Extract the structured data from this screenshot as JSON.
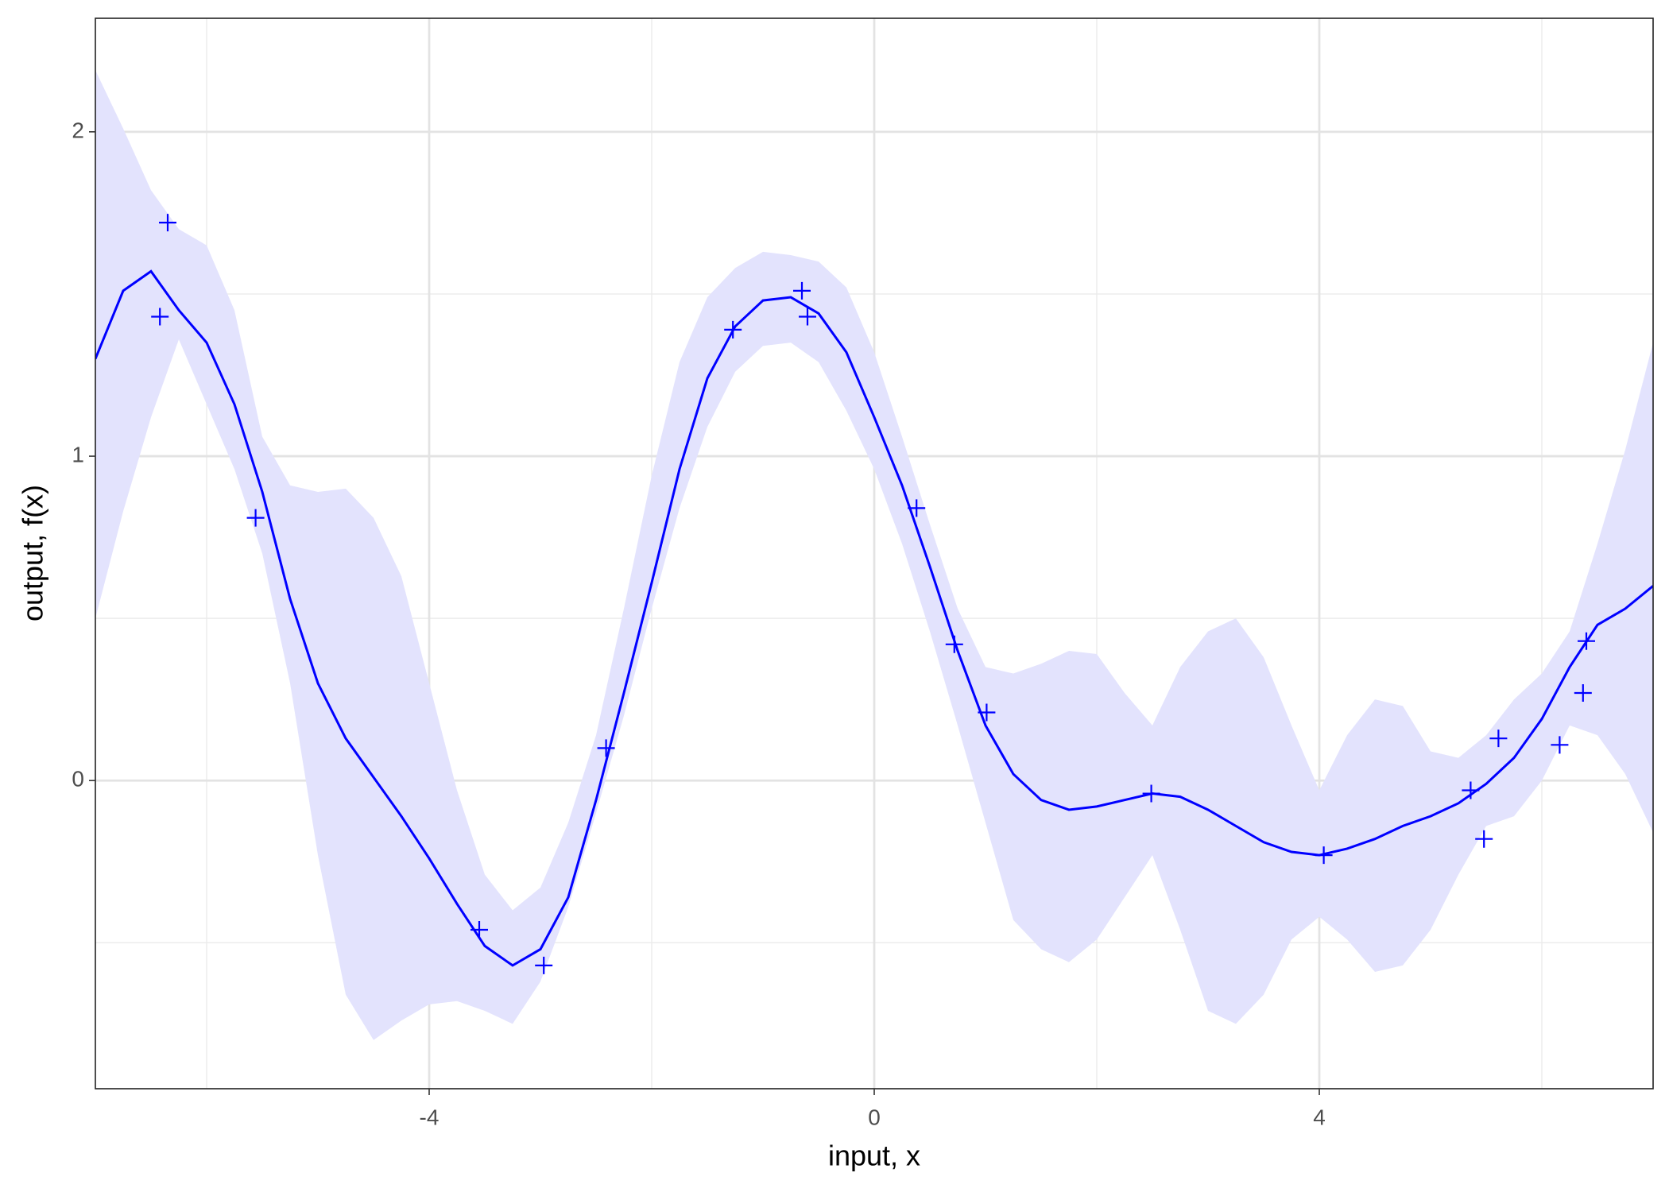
{
  "chart_data": {
    "type": "line",
    "xlabel": "input, x",
    "ylabel": "output, f(x)",
    "xlim": [
      -7,
      7
    ],
    "ylim": [
      -0.95,
      2.35
    ],
    "xticks": [
      -4,
      0,
      4
    ],
    "yticks": [
      0,
      1,
      2
    ],
    "x_minor_grid": [
      -6,
      -2,
      2,
      6
    ],
    "y_minor_grid": [
      -0.5,
      0.5,
      1.5
    ],
    "grid": true,
    "line_color": "#0000ff",
    "band_color": "#e3e3fd",
    "point_color": "#0000ff",
    "x": [
      -7,
      -6.75,
      -6.5,
      -6.25,
      -6,
      -5.75,
      -5.5,
      -5.25,
      -5,
      -4.75,
      -4.5,
      -4.25,
      -4,
      -3.75,
      -3.5,
      -3.25,
      -3,
      -2.75,
      -2.5,
      -2.25,
      -2,
      -1.75,
      -1.5,
      -1.25,
      -1,
      -0.75,
      -0.5,
      -0.25,
      0,
      0.25,
      0.5,
      0.75,
      1,
      1.25,
      1.5,
      1.75,
      2,
      2.25,
      2.5,
      2.75,
      3,
      3.25,
      3.5,
      3.75,
      4,
      4.25,
      4.5,
      4.75,
      5,
      5.25,
      5.5,
      5.75,
      6,
      6.25,
      6.5,
      6.75,
      7
    ],
    "mean": [
      1.3,
      1.51,
      1.57,
      1.45,
      1.35,
      1.16,
      0.89,
      0.56,
      0.3,
      0.13,
      0.01,
      -0.11,
      -0.24,
      -0.38,
      -0.51,
      -0.57,
      -0.52,
      -0.36,
      -0.06,
      0.27,
      0.61,
      0.96,
      1.24,
      1.4,
      1.48,
      1.49,
      1.44,
      1.32,
      1.12,
      0.91,
      0.66,
      0.4,
      0.17,
      0.02,
      -0.06,
      -0.09,
      -0.08,
      -0.06,
      -0.04,
      -0.05,
      -0.09,
      -0.14,
      -0.19,
      -0.22,
      -0.23,
      -0.21,
      -0.18,
      -0.14,
      -0.11,
      -0.07,
      -0.01,
      0.07,
      0.19,
      0.35,
      0.48,
      0.53,
      0.6
    ],
    "upper": [
      2.19,
      2.01,
      1.82,
      1.7,
      1.65,
      1.45,
      1.06,
      0.91,
      0.89,
      0.9,
      0.81,
      0.63,
      0.3,
      -0.03,
      -0.29,
      -0.4,
      -0.33,
      -0.13,
      0.14,
      0.53,
      0.94,
      1.29,
      1.49,
      1.58,
      1.63,
      1.62,
      1.6,
      1.52,
      1.32,
      1.06,
      0.79,
      0.53,
      0.35,
      0.33,
      0.36,
      0.4,
      0.39,
      0.27,
      0.17,
      0.35,
      0.46,
      0.5,
      0.38,
      0.17,
      -0.03,
      0.14,
      0.25,
      0.23,
      0.09,
      0.07,
      0.14,
      0.25,
      0.33,
      0.46,
      0.73,
      1.02,
      1.35
    ],
    "lower": [
      0.5,
      0.83,
      1.12,
      1.36,
      1.16,
      0.96,
      0.7,
      0.3,
      -0.23,
      -0.66,
      -0.8,
      -0.74,
      -0.69,
      -0.68,
      -0.71,
      -0.75,
      -0.62,
      -0.39,
      -0.1,
      0.2,
      0.53,
      0.84,
      1.09,
      1.26,
      1.34,
      1.35,
      1.29,
      1.14,
      0.96,
      0.73,
      0.46,
      0.17,
      -0.13,
      -0.43,
      -0.52,
      -0.56,
      -0.49,
      -0.36,
      -0.23,
      -0.46,
      -0.71,
      -0.75,
      -0.66,
      -0.49,
      -0.42,
      -0.49,
      -0.59,
      -0.57,
      -0.46,
      -0.29,
      -0.14,
      -0.11,
      0.0,
      0.17,
      0.14,
      0.02,
      -0.16
    ],
    "points": {
      "x": [
        -6.35,
        -6.42,
        -5.56,
        -3.55,
        -2.97,
        -2.41,
        -1.27,
        -0.65,
        -0.6,
        0.38,
        0.72,
        1.01,
        2.49,
        4.04,
        5.36,
        5.48,
        5.61,
        6.16,
        6.37,
        6.4
      ],
      "y": [
        1.72,
        1.43,
        0.81,
        -0.46,
        -0.57,
        0.1,
        1.39,
        1.51,
        1.43,
        0.84,
        0.42,
        0.21,
        -0.04,
        -0.23,
        -0.03,
        -0.18,
        0.13,
        0.11,
        0.27,
        0.43
      ]
    }
  }
}
